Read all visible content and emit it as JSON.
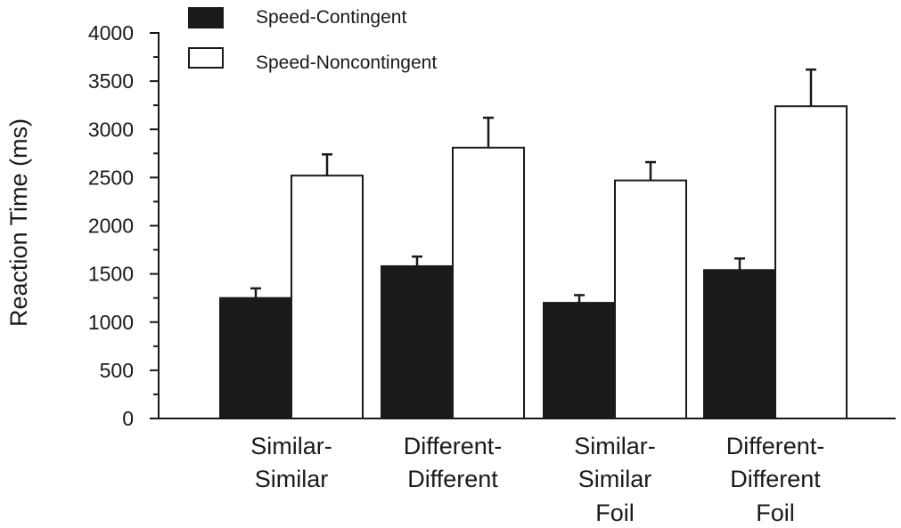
{
  "chart_data": {
    "type": "bar",
    "title": "",
    "xlabel": "",
    "ylabel": "Reaction Time (ms)",
    "ylim": [
      0,
      4000
    ],
    "yticks": [
      "0",
      "500",
      "1000",
      "1500",
      "2000",
      "2500",
      "3000",
      "3500",
      "4000"
    ],
    "categories": [
      [
        "Similar-",
        "Similar"
      ],
      [
        "Different-",
        "Different"
      ],
      [
        "Similar-",
        "Similar",
        "Foil"
      ],
      [
        "Different-",
        "Different",
        "Foil"
      ]
    ],
    "series": [
      {
        "name": "Speed-Contingent",
        "color": "#1a1a1a",
        "values": [
          1250,
          1580,
          1200,
          1540
        ],
        "errors": [
          100,
          100,
          80,
          120
        ]
      },
      {
        "name": "Speed-Noncontingent",
        "color": "#ffffff",
        "values": [
          2520,
          2810,
          2470,
          3240
        ],
        "errors": [
          220,
          310,
          190,
          380
        ]
      }
    ],
    "legend_position": "top-left",
    "grid": false
  }
}
